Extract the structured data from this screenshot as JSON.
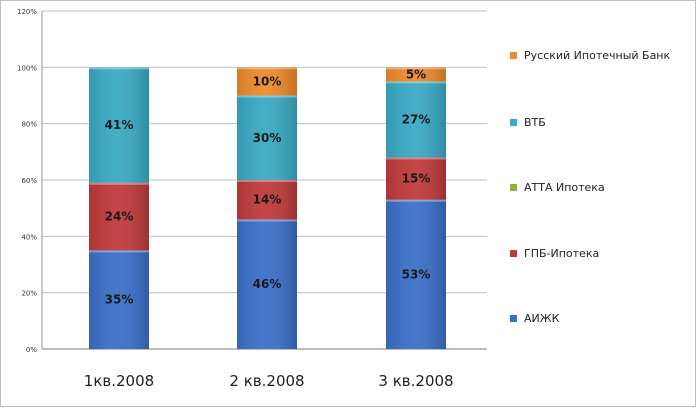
{
  "chart_data": {
    "type": "bar",
    "stacked": true,
    "categories": [
      "1кв.2008",
      "2 кв.2008",
      "3 кв.2008"
    ],
    "y_ticks": [
      "0%",
      "20%",
      "40%",
      "60%",
      "80%",
      "100%",
      "120%"
    ],
    "ylim": [
      0,
      120
    ],
    "grid": true,
    "legend_position": "right",
    "series": [
      {
        "name": "АИЖК",
        "color": "#3a6fc8",
        "values": [
          35,
          46,
          53
        ],
        "labels": [
          "35%",
          "46%",
          "53%"
        ]
      },
      {
        "name": "ГПБ-Ипотека",
        "color": "#c0393b",
        "values": [
          24,
          14,
          15
        ],
        "labels": [
          "24%",
          "14%",
          "15%"
        ]
      },
      {
        "name": "АТТА Ипотека",
        "color": "#8fb33a",
        "values": [
          0,
          0,
          0
        ],
        "labels": [
          "",
          "",
          ""
        ]
      },
      {
        "name": "ВТБ",
        "color": "#39a9c4",
        "values": [
          41,
          30,
          27
        ],
        "labels": [
          "41%",
          "30%",
          "27%"
        ]
      },
      {
        "name": "Русский Ипотечный  Банк",
        "color": "#ee8a2a",
        "values": [
          0,
          10,
          5
        ],
        "labels": [
          "",
          "10%",
          "5%"
        ]
      }
    ],
    "legend_order": [
      4,
      3,
      2,
      1,
      0
    ]
  }
}
